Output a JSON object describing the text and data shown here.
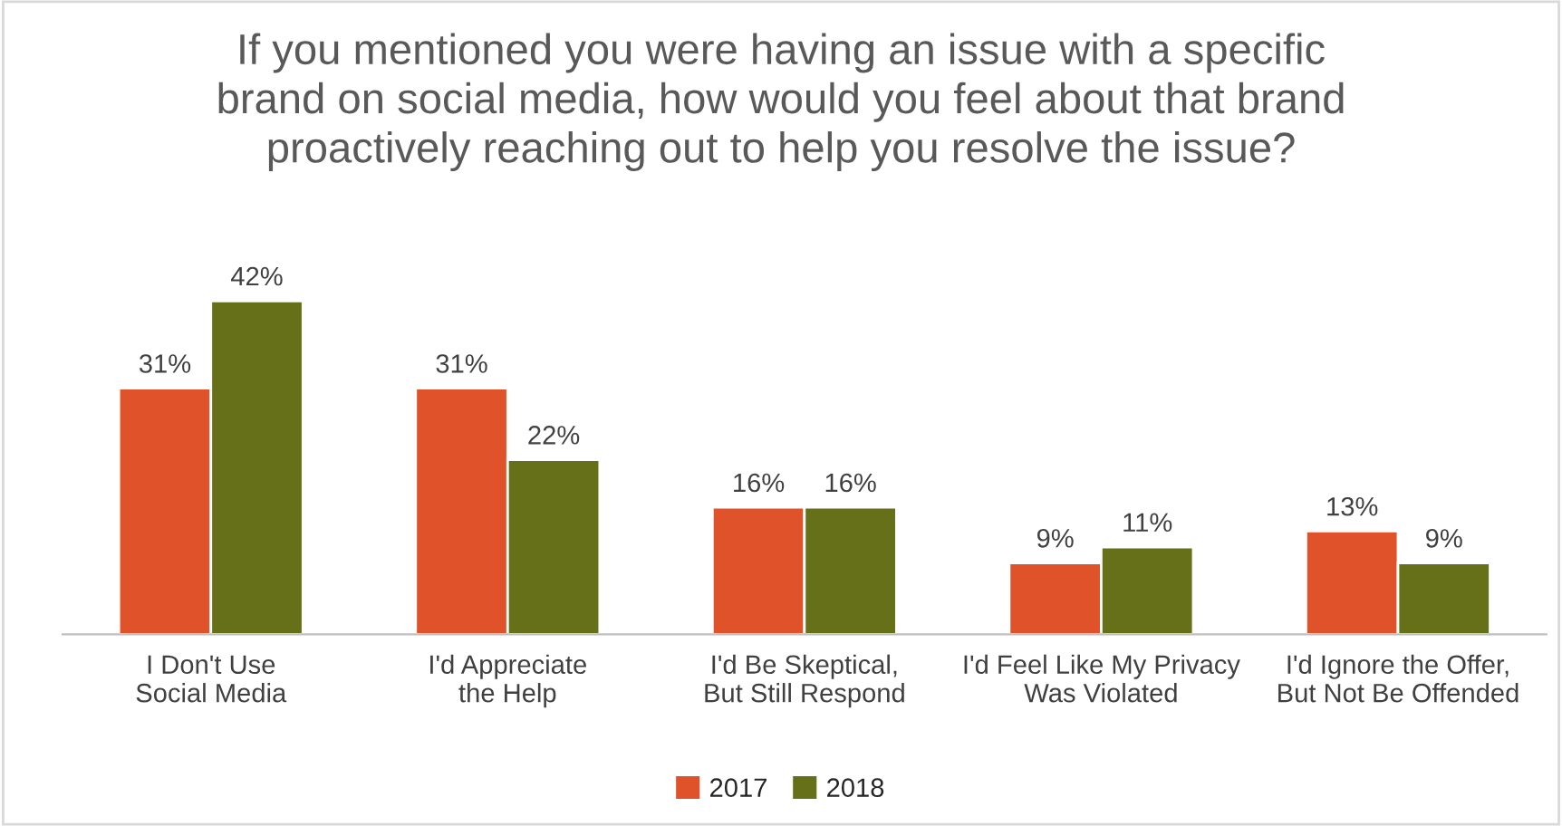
{
  "chart_data": {
    "type": "bar",
    "title": "If you mentioned you were having an issue with a specific\nbrand on social media, how would you feel about that brand\nproactively reaching out to help you resolve the issue?",
    "categories": [
      "I Don't Use\nSocial Media",
      "I'd Appreciate\nthe Help",
      "I'd Be Skeptical,\nBut Still Respond",
      "I'd Feel Like My Privacy\nWas Violated",
      "I'd Ignore the Offer,\nBut Not Be Offended"
    ],
    "series": [
      {
        "name": "2017",
        "color": "#e0522a",
        "values": [
          31,
          31,
          16,
          9,
          13
        ],
        "value_labels": [
          "31%",
          "31%",
          "16%",
          "9%",
          "13%"
        ]
      },
      {
        "name": "2018",
        "color": "#667018",
        "values": [
          42,
          22,
          16,
          11,
          9
        ],
        "value_labels": [
          "42%",
          "22%",
          "16%",
          "11%",
          "9%"
        ]
      }
    ],
    "legend": "bottom",
    "grid": false
  }
}
